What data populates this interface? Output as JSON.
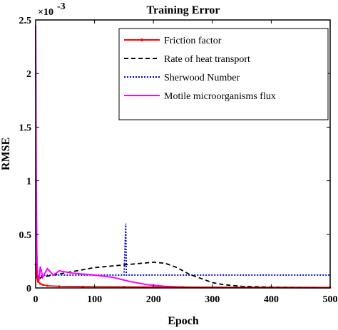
{
  "chart_data": {
    "type": "line",
    "title": "Training Error",
    "xlabel": "Epoch",
    "ylabel": "RMSE",
    "exponent_base": "×10",
    "exponent_power": "-3",
    "xlim": [
      0,
      500
    ],
    "ylim": [
      0,
      2.5
    ],
    "xticks": [
      "0",
      "100",
      "200",
      "300",
      "400",
      "500"
    ],
    "yticks": [
      "0",
      "0.5",
      "1",
      "1.5",
      "2",
      "2.5"
    ],
    "legend_position": "top-right",
    "series": [
      {
        "name": "Friction factor",
        "color": "#ff0000",
        "style": "solid-marker",
        "points": [
          [
            0,
            0.22
          ],
          [
            1,
            0.16
          ],
          [
            2,
            0.1
          ],
          [
            4,
            0.06
          ],
          [
            8,
            0.04
          ],
          [
            12,
            0.03
          ],
          [
            20,
            0.02
          ],
          [
            40,
            0.015
          ],
          [
            80,
            0.012
          ],
          [
            150,
            0.01
          ],
          [
            250,
            0.008
          ],
          [
            350,
            0.006
          ],
          [
            500,
            0.005
          ]
        ]
      },
      {
        "name": "Rate of heat transport",
        "color": "#000000",
        "style": "dashed",
        "points": [
          [
            0,
            0.2
          ],
          [
            5,
            0.08
          ],
          [
            10,
            0.1
          ],
          [
            20,
            0.11
          ],
          [
            40,
            0.13
          ],
          [
            60,
            0.15
          ],
          [
            80,
            0.17
          ],
          [
            100,
            0.19
          ],
          [
            120,
            0.2
          ],
          [
            140,
            0.21
          ],
          [
            160,
            0.22
          ],
          [
            180,
            0.23
          ],
          [
            200,
            0.24
          ],
          [
            220,
            0.23
          ],
          [
            240,
            0.19
          ],
          [
            260,
            0.13
          ],
          [
            280,
            0.09
          ],
          [
            300,
            0.05
          ],
          [
            320,
            0.03
          ],
          [
            350,
            0.015
          ],
          [
            400,
            0.008
          ],
          [
            450,
            0.005
          ],
          [
            500,
            0.004
          ]
        ]
      },
      {
        "name": "Sherwood Number",
        "color": "#0000cc",
        "style": "dotted",
        "points": [
          [
            0,
            2.45
          ],
          [
            1,
            0.9
          ],
          [
            2,
            0.3
          ],
          [
            3,
            0.12
          ],
          [
            5,
            0.11
          ],
          [
            20,
            0.12
          ],
          [
            50,
            0.12
          ],
          [
            100,
            0.12
          ],
          [
            150,
            0.12
          ],
          [
            153,
            0.6
          ],
          [
            154,
            0.12
          ],
          [
            200,
            0.12
          ],
          [
            300,
            0.12
          ],
          [
            400,
            0.12
          ],
          [
            500,
            0.12
          ]
        ]
      },
      {
        "name": "Motile microorganisms flux",
        "color": "#ff00ff",
        "style": "solid",
        "points": [
          [
            0,
            2.45
          ],
          [
            1,
            1.0
          ],
          [
            2,
            0.35
          ],
          [
            3,
            0.12
          ],
          [
            5,
            0.05
          ],
          [
            8,
            0.2
          ],
          [
            12,
            0.1
          ],
          [
            20,
            0.18
          ],
          [
            30,
            0.12
          ],
          [
            40,
            0.16
          ],
          [
            60,
            0.14
          ],
          [
            80,
            0.13
          ],
          [
            100,
            0.12
          ],
          [
            130,
            0.1
          ],
          [
            160,
            0.06
          ],
          [
            190,
            0.03
          ],
          [
            220,
            0.015
          ],
          [
            260,
            0.006
          ],
          [
            300,
            0.004
          ],
          [
            400,
            0.003
          ],
          [
            500,
            0.002
          ]
        ]
      }
    ]
  }
}
